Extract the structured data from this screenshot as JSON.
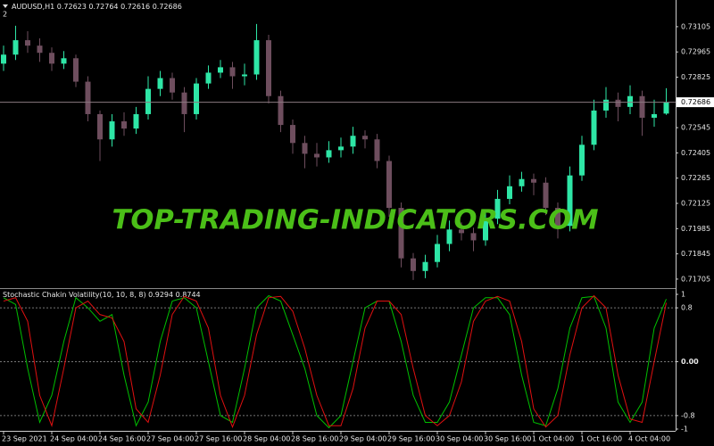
{
  "header": {
    "pane": "2"
  },
  "watermark": "TOP-TRADING-INDICATORS.COM",
  "chart_data": [
    {
      "type": "candlestick",
      "title": "AUDUSD,H1",
      "up_color": "#2ee6a6",
      "down_color": "#6e4e5e",
      "candles": {
        "open": [
          0.729,
          0.7295,
          0.7303,
          0.73,
          0.7296,
          0.729,
          0.7293,
          0.728,
          0.7262,
          0.7248,
          0.7258,
          0.7254,
          0.7262,
          0.7276,
          0.7282,
          0.7274,
          0.7262,
          0.7279,
          0.7285,
          0.7288,
          0.7283,
          0.7284,
          0.7303,
          0.7272,
          0.7256,
          0.7246,
          0.724,
          0.7238,
          0.7242,
          0.7244,
          0.725,
          0.7248,
          0.7236,
          0.721,
          0.7182,
          0.7175,
          0.718,
          0.719,
          0.7198,
          0.7196,
          0.7192,
          0.7204,
          0.7215,
          0.7222,
          0.7226,
          0.7224,
          0.721,
          0.72,
          0.7228,
          0.7245,
          0.7264,
          0.727,
          0.7266,
          0.7272,
          0.726,
          0.72623
        ],
        "high": [
          0.73,
          0.7311,
          0.7308,
          0.7304,
          0.7299,
          0.7297,
          0.7295,
          0.7283,
          0.7264,
          0.7262,
          0.7263,
          0.7266,
          0.7283,
          0.7286,
          0.7285,
          0.7277,
          0.7282,
          0.7289,
          0.7292,
          0.7291,
          0.729,
          0.7312,
          0.7306,
          0.7275,
          0.7259,
          0.725,
          0.7246,
          0.7247,
          0.7249,
          0.7255,
          0.7253,
          0.7251,
          0.7239,
          0.7213,
          0.7185,
          0.7184,
          0.7195,
          0.7203,
          0.7202,
          0.7199,
          0.7209,
          0.722,
          0.7228,
          0.723,
          0.7229,
          0.7227,
          0.7213,
          0.7233,
          0.725,
          0.727,
          0.7277,
          0.7274,
          0.7278,
          0.7275,
          0.727,
          0.72764
        ],
        "low": [
          0.7286,
          0.7292,
          0.7296,
          0.7291,
          0.7286,
          0.7287,
          0.7277,
          0.7258,
          0.7236,
          0.7244,
          0.725,
          0.7251,
          0.7259,
          0.7272,
          0.727,
          0.7252,
          0.7259,
          0.7276,
          0.7282,
          0.7276,
          0.7278,
          0.7281,
          0.7268,
          0.7252,
          0.724,
          0.7232,
          0.7233,
          0.7235,
          0.7238,
          0.724,
          0.7243,
          0.7232,
          0.7205,
          0.7177,
          0.717,
          0.7171,
          0.7177,
          0.7186,
          0.7192,
          0.7186,
          0.7189,
          0.7201,
          0.7212,
          0.7219,
          0.7217,
          0.7206,
          0.7193,
          0.7197,
          0.7225,
          0.7242,
          0.726,
          0.7258,
          0.7262,
          0.725,
          0.7255,
          0.72616
        ],
        "close": [
          0.7295,
          0.7303,
          0.73,
          0.7296,
          0.729,
          0.7293,
          0.728,
          0.7262,
          0.7248,
          0.7258,
          0.7254,
          0.7262,
          0.7276,
          0.7282,
          0.7274,
          0.7262,
          0.7279,
          0.7285,
          0.7288,
          0.7283,
          0.7284,
          0.7303,
          0.7272,
          0.7256,
          0.7246,
          0.724,
          0.7238,
          0.7242,
          0.7244,
          0.725,
          0.7248,
          0.7236,
          0.721,
          0.7182,
          0.7175,
          0.718,
          0.719,
          0.7198,
          0.7196,
          0.7192,
          0.7204,
          0.7215,
          0.7222,
          0.7226,
          0.7224,
          0.721,
          0.72,
          0.7228,
          0.7245,
          0.7264,
          0.727,
          0.7266,
          0.7272,
          0.726,
          0.7262,
          0.72686
        ]
      },
      "ylim": [
        0.7166,
        0.73253
      ],
      "yticks": [
        0.73105,
        0.72965,
        0.72825,
        0.72545,
        0.72405,
        0.72265,
        0.72125,
        0.71985,
        0.71845,
        0.71705
      ]
    },
    {
      "type": "line",
      "title": "Stochastic Chakin Volatility(10, 10, 8, 8)",
      "series": [
        {
          "color": "#00c000",
          "values": [
            0.95,
            0.85,
            -0.1,
            -0.9,
            -0.5,
            0.3,
            0.95,
            0.8,
            0.6,
            0.7,
            -0.2,
            -0.95,
            -0.6,
            0.3,
            0.9,
            0.95,
            0.8,
            0.0,
            -0.8,
            -0.9,
            -0.1,
            0.8,
            0.98,
            0.9,
            0.4,
            -0.1,
            -0.8,
            -0.98,
            -0.8,
            0.0,
            0.8,
            0.9,
            0.9,
            0.3,
            -0.5,
            -0.9,
            -0.9,
            -0.6,
            0.1,
            0.8,
            0.95,
            0.95,
            0.7,
            -0.2,
            -0.9,
            -0.95,
            -0.4,
            0.5,
            0.95,
            0.97,
            0.5,
            -0.6,
            -0.9,
            -0.6,
            0.5,
            0.9294
          ]
        },
        {
          "color": "#e01010",
          "values": [
            0.9,
            0.95,
            0.6,
            -0.5,
            -0.95,
            -0.1,
            0.8,
            0.9,
            0.7,
            0.65,
            0.3,
            -0.7,
            -0.9,
            -0.2,
            0.7,
            0.97,
            0.9,
            0.5,
            -0.5,
            -0.97,
            -0.5,
            0.4,
            0.95,
            0.97,
            0.75,
            0.2,
            -0.5,
            -0.95,
            -0.95,
            -0.4,
            0.5,
            0.9,
            0.9,
            0.7,
            -0.1,
            -0.8,
            -0.95,
            -0.8,
            -0.3,
            0.6,
            0.9,
            0.97,
            0.9,
            0.3,
            -0.7,
            -0.97,
            -0.8,
            0.1,
            0.8,
            0.98,
            0.8,
            -0.2,
            -0.85,
            -0.9,
            0.0,
            0.8744
          ]
        }
      ],
      "ylim": [
        -1,
        1
      ],
      "yticks": [
        1,
        0.8,
        {
          "value": 0,
          "label": "0.00"
        },
        -0.8,
        -1
      ],
      "xticks": [
        {
          "value": 0,
          "label": "23 Sep 2021"
        },
        {
          "value": 4,
          "label": "24 Sep 04:00"
        },
        {
          "value": 8,
          "label": "24 Sep 16:00"
        },
        {
          "value": 12,
          "label": "27 Sep 04:00"
        },
        {
          "value": 16,
          "label": "27 Sep 16:00"
        },
        {
          "value": 20,
          "label": "28 Sep 04:00"
        },
        {
          "value": 24,
          "label": "28 Sep 16:00"
        },
        {
          "value": 28,
          "label": "29 Sep 04:00"
        },
        {
          "value": 32,
          "label": "29 Sep 16:00"
        },
        {
          "value": 36,
          "label": "30 Sep 04:00"
        },
        {
          "value": 40,
          "label": "30 Sep 16:00"
        },
        {
          "value": 44,
          "label": "1 Oct 04:00"
        },
        {
          "value": 48,
          "label": "1 Oct 16:00"
        },
        {
          "value": 52,
          "label": "4 Oct 04:00"
        }
      ]
    }
  ]
}
